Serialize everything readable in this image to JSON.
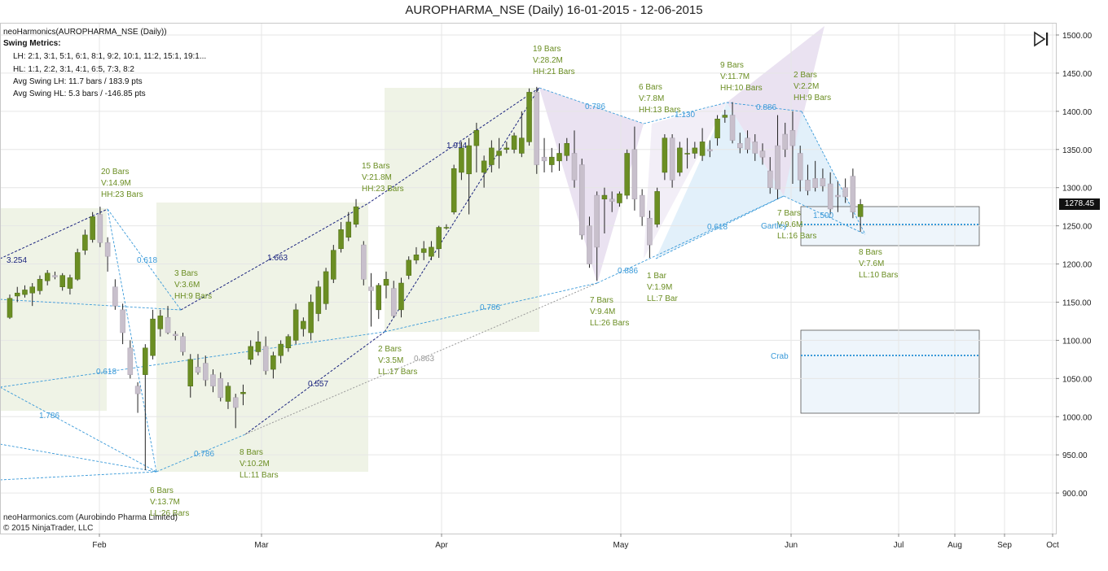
{
  "title": "AUROPHARMA_NSE (Daily)  16-01-2015 - 12-06-2015",
  "indicator_label": "neoHarmonics(AUROPHARMA_NSE (Daily))",
  "swing_metrics": {
    "header": "Swing Metrics:",
    "lh": "LH: 2:1, 3:1, 5:1, 6:1, 8:1, 9:2, 10:1, 11:2, 15:1, 19:1...",
    "hl": "HL: 1:1, 2:2, 3:1, 4:1, 6:5, 7:3, 8:2",
    "avg_lh": "Avg Swing LH: 11.7 bars / 183.9 pts",
    "avg_hl": "Avg Swing HL: 5.3 bars / -146.85 pts"
  },
  "footer": {
    "line1": "neoHarmonics.com (Aurobindo Pharma Limited)",
    "line2": "© 2015 NinjaTrader, LLC"
  },
  "last_price": "1278.45",
  "colors": {
    "bull": "#6b8e23",
    "bear": "#c8c0cc",
    "swing_text": "#6b8e23",
    "fib_line": "#3a9ad9",
    "trend_line": "#1a237e",
    "gray_line": "#999999"
  },
  "chart_data": {
    "type": "candlestick",
    "ylim": [
      870,
      1510
    ],
    "yticks": [
      "1500.00",
      "1450.00",
      "1400.00",
      "1350.00",
      "1300.00",
      "1250.00",
      "1200.00",
      "1150.00",
      "1100.00",
      "1050.00",
      "1000.00",
      "950.00",
      "900.00"
    ],
    "xticks": [
      "Feb",
      "Mar",
      "Apr",
      "May",
      "Jun",
      "Jul",
      "Aug",
      "Sep",
      "Oct"
    ],
    "candles": [
      {
        "o": 1130,
        "h": 1160,
        "l": 1128,
        "c": 1155
      },
      {
        "o": 1158,
        "h": 1170,
        "l": 1150,
        "c": 1162
      },
      {
        "o": 1160,
        "h": 1172,
        "l": 1156,
        "c": 1166
      },
      {
        "o": 1162,
        "h": 1175,
        "l": 1145,
        "c": 1170
      },
      {
        "o": 1165,
        "h": 1185,
        "l": 1160,
        "c": 1180
      },
      {
        "o": 1178,
        "h": 1192,
        "l": 1172,
        "c": 1188
      },
      {
        "o": 1185,
        "h": 1190,
        "l": 1180,
        "c": 1183
      },
      {
        "o": 1170,
        "h": 1188,
        "l": 1165,
        "c": 1185
      },
      {
        "o": 1168,
        "h": 1186,
        "l": 1160,
        "c": 1182
      },
      {
        "o": 1180,
        "h": 1220,
        "l": 1178,
        "c": 1215
      },
      {
        "o": 1218,
        "h": 1245,
        "l": 1212,
        "c": 1238
      },
      {
        "o": 1232,
        "h": 1268,
        "l": 1228,
        "c": 1262
      },
      {
        "o": 1265,
        "h": 1275,
        "l": 1222,
        "c": 1228
      },
      {
        "o": 1228,
        "h": 1235,
        "l": 1190,
        "c": 1210
      },
      {
        "o": 1170,
        "h": 1180,
        "l": 1140,
        "c": 1145
      },
      {
        "o": 1140,
        "h": 1148,
        "l": 1095,
        "c": 1110
      },
      {
        "o": 1090,
        "h": 1100,
        "l": 1050,
        "c": 1055
      },
      {
        "o": 1040,
        "h": 1045,
        "l": 1005,
        "c": 1030
      },
      {
        "o": 1055,
        "h": 1095,
        "l": 930,
        "c": 1090
      },
      {
        "o": 1080,
        "h": 1140,
        "l": 1075,
        "c": 1128
      },
      {
        "o": 1115,
        "h": 1140,
        "l": 1105,
        "c": 1132
      },
      {
        "o": 1130,
        "h": 1145,
        "l": 1108,
        "c": 1110
      },
      {
        "o": 1108,
        "h": 1112,
        "l": 1100,
        "c": 1106
      },
      {
        "o": 1105,
        "h": 1110,
        "l": 1080,
        "c": 1085
      },
      {
        "o": 1040,
        "h": 1082,
        "l": 1025,
        "c": 1075
      },
      {
        "o": 1065,
        "h": 1082,
        "l": 1055,
        "c": 1058
      },
      {
        "o": 1070,
        "h": 1080,
        "l": 1040,
        "c": 1048
      },
      {
        "o": 1055,
        "h": 1062,
        "l": 1032,
        "c": 1040
      },
      {
        "o": 1050,
        "h": 1058,
        "l": 1020,
        "c": 1025
      },
      {
        "o": 1020,
        "h": 1045,
        "l": 1010,
        "c": 1040
      },
      {
        "o": 1025,
        "h": 1030,
        "l": 985,
        "c": 1012
      },
      {
        "o": 1030,
        "h": 1042,
        "l": 1015,
        "c": 1032
      },
      {
        "o": 1075,
        "h": 1100,
        "l": 1068,
        "c": 1092
      },
      {
        "o": 1085,
        "h": 1112,
        "l": 1080,
        "c": 1098
      },
      {
        "o": 1092,
        "h": 1105,
        "l": 1055,
        "c": 1060
      },
      {
        "o": 1062,
        "h": 1085,
        "l": 1050,
        "c": 1080
      },
      {
        "o": 1080,
        "h": 1100,
        "l": 1070,
        "c": 1095
      },
      {
        "o": 1090,
        "h": 1108,
        "l": 1085,
        "c": 1105
      },
      {
        "o": 1100,
        "h": 1148,
        "l": 1095,
        "c": 1140
      },
      {
        "o": 1115,
        "h": 1130,
        "l": 1105,
        "c": 1125
      },
      {
        "o": 1110,
        "h": 1160,
        "l": 1100,
        "c": 1150
      },
      {
        "o": 1135,
        "h": 1178,
        "l": 1125,
        "c": 1170
      },
      {
        "o": 1148,
        "h": 1195,
        "l": 1140,
        "c": 1190
      },
      {
        "o": 1180,
        "h": 1225,
        "l": 1175,
        "c": 1218
      },
      {
        "o": 1220,
        "h": 1255,
        "l": 1215,
        "c": 1245
      },
      {
        "o": 1235,
        "h": 1268,
        "l": 1230,
        "c": 1255
      },
      {
        "o": 1252,
        "h": 1285,
        "l": 1248,
        "c": 1275
      },
      {
        "o": 1225,
        "h": 1230,
        "l": 1172,
        "c": 1180
      },
      {
        "o": 1170,
        "h": 1188,
        "l": 1118,
        "c": 1165
      },
      {
        "o": 1140,
        "h": 1175,
        "l": 1128,
        "c": 1172
      },
      {
        "o": 1172,
        "h": 1190,
        "l": 1155,
        "c": 1180
      },
      {
        "o": 1168,
        "h": 1178,
        "l": 1130,
        "c": 1132
      },
      {
        "o": 1140,
        "h": 1182,
        "l": 1130,
        "c": 1175
      },
      {
        "o": 1185,
        "h": 1210,
        "l": 1180,
        "c": 1205
      },
      {
        "o": 1205,
        "h": 1222,
        "l": 1200,
        "c": 1212
      },
      {
        "o": 1215,
        "h": 1230,
        "l": 1205,
        "c": 1220
      },
      {
        "o": 1210,
        "h": 1230,
        "l": 1205,
        "c": 1222
      },
      {
        "o": 1220,
        "h": 1250,
        "l": 1208,
        "c": 1248
      },
      {
        "o": 1248,
        "h": 1252,
        "l": 1245,
        "c": 1248
      },
      {
        "o": 1268,
        "h": 1330,
        "l": 1265,
        "c": 1325
      },
      {
        "o": 1320,
        "h": 1360,
        "l": 1310,
        "c": 1352
      },
      {
        "o": 1318,
        "h": 1365,
        "l": 1265,
        "c": 1355
      },
      {
        "o": 1355,
        "h": 1385,
        "l": 1320,
        "c": 1375
      },
      {
        "o": 1320,
        "h": 1342,
        "l": 1300,
        "c": 1335
      },
      {
        "o": 1330,
        "h": 1362,
        "l": 1320,
        "c": 1352
      },
      {
        "o": 1342,
        "h": 1365,
        "l": 1325,
        "c": 1348
      },
      {
        "o": 1350,
        "h": 1360,
        "l": 1345,
        "c": 1352
      },
      {
        "o": 1350,
        "h": 1372,
        "l": 1345,
        "c": 1368
      },
      {
        "o": 1345,
        "h": 1400,
        "l": 1340,
        "c": 1365
      },
      {
        "o": 1360,
        "h": 1430,
        "l": 1355,
        "c": 1425
      },
      {
        "o": 1425,
        "h": 1432,
        "l": 1318,
        "c": 1330
      },
      {
        "o": 1340,
        "h": 1365,
        "l": 1320,
        "c": 1335
      },
      {
        "o": 1330,
        "h": 1352,
        "l": 1320,
        "c": 1340
      },
      {
        "o": 1335,
        "h": 1358,
        "l": 1322,
        "c": 1345
      },
      {
        "o": 1342,
        "h": 1365,
        "l": 1335,
        "c": 1358
      },
      {
        "o": 1345,
        "h": 1375,
        "l": 1300,
        "c": 1310
      },
      {
        "o": 1330,
        "h": 1338,
        "l": 1232,
        "c": 1238
      },
      {
        "o": 1250,
        "h": 1262,
        "l": 1195,
        "c": 1200
      },
      {
        "o": 1290,
        "h": 1295,
        "l": 1178,
        "c": 1222
      },
      {
        "o": 1285,
        "h": 1300,
        "l": 1240,
        "c": 1290
      },
      {
        "o": 1285,
        "h": 1295,
        "l": 1268,
        "c": 1282
      },
      {
        "o": 1280,
        "h": 1295,
        "l": 1275,
        "c": 1292
      },
      {
        "o": 1290,
        "h": 1350,
        "l": 1285,
        "c": 1345
      },
      {
        "o": 1350,
        "h": 1380,
        "l": 1270,
        "c": 1285
      },
      {
        "o": 1290,
        "h": 1298,
        "l": 1250,
        "c": 1262
      },
      {
        "o": 1260,
        "h": 1270,
        "l": 1208,
        "c": 1225
      },
      {
        "o": 1252,
        "h": 1300,
        "l": 1248,
        "c": 1295
      },
      {
        "o": 1320,
        "h": 1370,
        "l": 1310,
        "c": 1365
      },
      {
        "o": 1365,
        "h": 1370,
        "l": 1300,
        "c": 1310
      },
      {
        "o": 1320,
        "h": 1360,
        "l": 1315,
        "c": 1352
      },
      {
        "o": 1345,
        "h": 1365,
        "l": 1325,
        "c": 1345
      },
      {
        "o": 1345,
        "h": 1360,
        "l": 1338,
        "c": 1352
      },
      {
        "o": 1342,
        "h": 1378,
        "l": 1335,
        "c": 1360
      },
      {
        "o": 1350,
        "h": 1362,
        "l": 1340,
        "c": 1348
      },
      {
        "o": 1365,
        "h": 1395,
        "l": 1355,
        "c": 1390
      },
      {
        "o": 1392,
        "h": 1402,
        "l": 1385,
        "c": 1395
      },
      {
        "o": 1395,
        "h": 1412,
        "l": 1358,
        "c": 1362
      },
      {
        "o": 1358,
        "h": 1372,
        "l": 1345,
        "c": 1352
      },
      {
        "o": 1365,
        "h": 1375,
        "l": 1345,
        "c": 1350
      },
      {
        "o": 1360,
        "h": 1370,
        "l": 1335,
        "c": 1345
      },
      {
        "o": 1348,
        "h": 1358,
        "l": 1330,
        "c": 1340
      },
      {
        "o": 1322,
        "h": 1340,
        "l": 1292,
        "c": 1300
      },
      {
        "o": 1355,
        "h": 1395,
        "l": 1285,
        "c": 1298
      },
      {
        "o": 1370,
        "h": 1385,
        "l": 1340,
        "c": 1350
      },
      {
        "o": 1375,
        "h": 1400,
        "l": 1305,
        "c": 1355
      },
      {
        "o": 1345,
        "h": 1355,
        "l": 1295,
        "c": 1310
      },
      {
        "o": 1310,
        "h": 1330,
        "l": 1290,
        "c": 1296
      },
      {
        "o": 1312,
        "h": 1335,
        "l": 1295,
        "c": 1300
      },
      {
        "o": 1312,
        "h": 1325,
        "l": 1295,
        "c": 1302
      },
      {
        "o": 1305,
        "h": 1320,
        "l": 1265,
        "c": 1272
      },
      {
        "o": 1290,
        "h": 1308,
        "l": 1268,
        "c": 1288
      },
      {
        "o": 1300,
        "h": 1312,
        "l": 1280,
        "c": 1288
      },
      {
        "o": 1315,
        "h": 1325,
        "l": 1260,
        "c": 1268
      },
      {
        "o": 1262,
        "h": 1285,
        "l": 1242,
        "c": 1278
      }
    ],
    "swing_labels": [
      {
        "lines": [
          "20 Bars",
          "V:14.9M",
          "HH:23 Bars"
        ],
        "anchor": "top"
      },
      {
        "lines": [
          "6 Bars",
          "V:13.7M",
          "LL:26 Bars"
        ],
        "anchor": "bottom"
      },
      {
        "lines": [
          "3 Bars",
          "V:3.6M",
          "HH:9 Bars"
        ],
        "anchor": "top"
      },
      {
        "lines": [
          "8 Bars",
          "V:10.2M",
          "LL:11 Bars"
        ],
        "anchor": "bottom"
      },
      {
        "lines": [
          "15 Bars",
          "V:21.8M",
          "HH:23 Bars"
        ],
        "anchor": "top"
      },
      {
        "lines": [
          "2 Bars",
          "V:3.5M",
          "LL:17 Bars"
        ],
        "anchor": "bottom"
      },
      {
        "lines": [
          "19 Bars",
          "V:28.2M",
          "HH:21 Bars"
        ],
        "anchor": "top"
      },
      {
        "lines": [
          "7 Bars",
          "V:9.4M",
          "LL:26 Bars"
        ],
        "anchor": "bottom"
      },
      {
        "lines": [
          "6 Bars",
          "V:7.8M",
          "HH:13 Bars"
        ],
        "anchor": "top"
      },
      {
        "lines": [
          "1 Bar",
          "V:1.9M",
          "LL:7 Bar"
        ],
        "anchor": "bottom"
      },
      {
        "lines": [
          "9 Bars",
          "V:11.7M",
          "HH:10 Bars"
        ],
        "anchor": "top"
      },
      {
        "lines": [
          "7 Bars",
          "V:9.6M",
          "LL:16 Bars"
        ],
        "anchor": "bottom"
      },
      {
        "lines": [
          "2 Bars",
          "V:2.2M",
          "HH:9 Bars"
        ],
        "anchor": "top"
      },
      {
        "lines": [
          "8 Bars",
          "V:7.6M",
          "LL:10 Bars"
        ],
        "anchor": "bottom"
      }
    ],
    "fib_labels": [
      "3.254",
      "0.618",
      "1.786",
      "0.618",
      "0.786",
      "1.663",
      "0.557",
      "1.914",
      "0.863",
      "0.786",
      "0.786",
      "0.886",
      "1.130",
      "0.886",
      "0.618",
      "1.500"
    ],
    "pattern_labels": [
      "Gartley",
      "Crab"
    ]
  }
}
